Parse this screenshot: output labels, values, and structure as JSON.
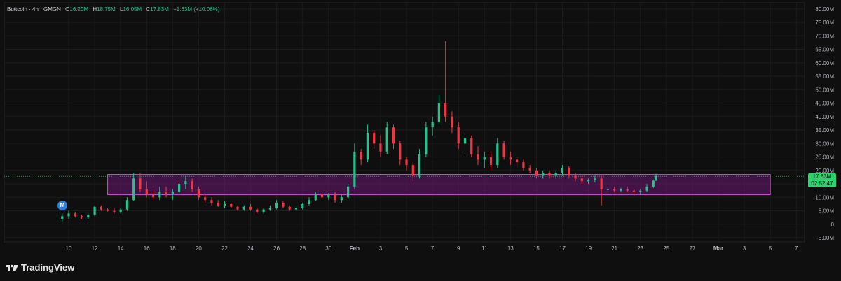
{
  "legend": {
    "symbol": "Buttcoin · 4h · GMGN",
    "open_label": "O",
    "open": "16.20M",
    "high_label": "H",
    "high": "18.75M",
    "low_label": "L",
    "low": "16.05M",
    "close_label": "C",
    "close": "17.83M",
    "change": "+1.63M (+10.06%)"
  },
  "price_tag": {
    "price": "17.83M",
    "countdown": "02:52:47"
  },
  "marker": {
    "label": "M"
  },
  "brand": {
    "name": "TradingView"
  },
  "colors": {
    "background": "#0f0f0f",
    "up": "#22c58b",
    "down": "#f23645",
    "zone_fill": "#6b1a73",
    "zone_border": "#d24bd8",
    "price_tag": "#2bd36f",
    "grid": "#1c1c1c"
  },
  "chart_data": {
    "type": "candlestick",
    "title": "",
    "y_axis": {
      "ticks": [
        "80.00M",
        "75.00M",
        "70.00M",
        "65.00M",
        "60.00M",
        "55.00M",
        "50.00M",
        "45.00M",
        "40.00M",
        "35.00M",
        "30.00M",
        "25.00M",
        "20.00M",
        "15.00M",
        "10.00M",
        "5.00M",
        "0",
        "-5.00M"
      ],
      "ylim": [
        -5,
        80
      ],
      "unit": "M"
    },
    "x_axis": {
      "ticks": [
        "10",
        "12",
        "14",
        "16",
        "18",
        "20",
        "22",
        "24",
        "26",
        "28",
        "30",
        "Feb",
        "3",
        "5",
        "7",
        "9",
        "11",
        "13",
        "15",
        "17",
        "19",
        "21",
        "23",
        "25",
        "27",
        "Mar",
        "3",
        "5",
        "7"
      ],
      "bold_ticks": [
        "Feb",
        "Mar"
      ],
      "range": [
        "Jan 9",
        "Mar 7"
      ]
    },
    "series": [
      {
        "points": [
          [
            "Jan 9.5",
            2,
            4,
            1,
            3
          ],
          [
            "Jan 10",
            3,
            5,
            2,
            4
          ],
          [
            "Jan 10.5",
            4,
            4.5,
            2.5,
            3
          ],
          [
            "Jan 11",
            3,
            3.5,
            2,
            2.5
          ],
          [
            "Jan 11.5",
            2.5,
            4,
            2,
            3.5
          ],
          [
            "Jan 12",
            3.5,
            7,
            3,
            6.5
          ],
          [
            "Jan 12.5",
            6.5,
            7,
            5,
            5.5
          ],
          [
            "Jan 13",
            5.5,
            6,
            4.5,
            5
          ],
          [
            "Jan 13.5",
            5,
            6,
            4,
            4.5
          ],
          [
            "Jan 14",
            4.5,
            6,
            4,
            5.5
          ],
          [
            "Jan 14.5",
            5.5,
            10,
            5,
            9
          ],
          [
            "Jan 15",
            9,
            19,
            8.5,
            17
          ],
          [
            "Jan 15.5",
            17,
            19,
            12,
            13
          ],
          [
            "Jan 16",
            13,
            16,
            10,
            11
          ],
          [
            "Jan 16.5",
            11,
            13,
            9,
            10
          ],
          [
            "Jan 17",
            10,
            14,
            9,
            12
          ],
          [
            "Jan 17.5",
            12,
            14,
            10,
            11
          ],
          [
            "Jan 18",
            11,
            13,
            9,
            12
          ],
          [
            "Jan 18.5",
            12,
            16,
            11,
            15
          ],
          [
            "Jan 19",
            15,
            18,
            13,
            16
          ],
          [
            "Jan 19.5",
            16,
            17,
            12,
            13
          ],
          [
            "Jan 20",
            13,
            14,
            9,
            10
          ],
          [
            "Jan 20.5",
            10,
            11,
            8,
            9
          ],
          [
            "Jan 21",
            9,
            10,
            7,
            8
          ],
          [
            "Jan 21.5",
            8,
            9,
            6.5,
            7
          ],
          [
            "Jan 22",
            7,
            8.5,
            6,
            7.5
          ],
          [
            "Jan 22.5",
            7.5,
            8,
            6,
            6.5
          ],
          [
            "Jan 23",
            6.5,
            7,
            5,
            5.5
          ],
          [
            "Jan 23.5",
            5.5,
            7,
            5,
            6.5
          ],
          [
            "Jan 24",
            6.5,
            7.5,
            5,
            5.5
          ],
          [
            "Jan 24.5",
            5.5,
            6,
            4,
            4.5
          ],
          [
            "Jan 25",
            4.5,
            6,
            4,
            5.5
          ],
          [
            "Jan 25.5",
            5.5,
            7,
            5,
            6
          ],
          [
            "Jan 26",
            6,
            9,
            5.5,
            8
          ],
          [
            "Jan 26.5",
            8,
            8.5,
            6,
            6.5
          ],
          [
            "Jan 27",
            6.5,
            7,
            5,
            5.5
          ],
          [
            "Jan 27.5",
            5.5,
            6.5,
            5,
            6
          ],
          [
            "Jan 28",
            6,
            8,
            5.5,
            7.5
          ],
          [
            "Jan 28.5",
            7.5,
            10,
            7,
            9
          ],
          [
            "Jan 29",
            9,
            12,
            8.5,
            11
          ],
          [
            "Jan 29.5",
            11,
            12,
            9,
            10
          ],
          [
            "Jan 30",
            10,
            11.5,
            9,
            11
          ],
          [
            "Jan 30.5",
            11,
            12,
            8,
            9
          ],
          [
            "Jan 31",
            9,
            11,
            8,
            10
          ],
          [
            "Jan 31.5",
            10,
            15,
            9.5,
            14
          ],
          [
            "Feb 1",
            14,
            30,
            13,
            27
          ],
          [
            "Feb 1.5",
            27,
            28,
            22,
            24
          ],
          [
            "Feb 2",
            24,
            37,
            23,
            34
          ],
          [
            "Feb 2.5",
            34,
            35,
            28,
            30
          ],
          [
            "Feb 3",
            30,
            33,
            25,
            27
          ],
          [
            "Feb 3.5",
            27,
            38,
            26,
            36
          ],
          [
            "Feb 4",
            36,
            37,
            28,
            30
          ],
          [
            "Feb 4.5",
            30,
            31,
            22,
            24
          ],
          [
            "Feb 5",
            24,
            25,
            20,
            22
          ],
          [
            "Feb 5.5",
            22,
            23,
            16,
            18
          ],
          [
            "Feb 6",
            18,
            28,
            17,
            26
          ],
          [
            "Feb 6.5",
            26,
            38,
            25,
            36
          ],
          [
            "Feb 7",
            36,
            40,
            33,
            38
          ],
          [
            "Feb 7.5",
            38,
            48,
            37,
            45
          ],
          [
            "Feb 8",
            45,
            68,
            38,
            40
          ],
          [
            "Feb 8.5",
            40,
            42,
            34,
            36
          ],
          [
            "Feb 9",
            36,
            38,
            28,
            30
          ],
          [
            "Feb 9.5",
            30,
            34,
            26,
            32
          ],
          [
            "Feb 10",
            32,
            33,
            25,
            26
          ],
          [
            "Feb 10.5",
            26,
            29,
            22,
            24
          ],
          [
            "Feb 11",
            24,
            27,
            21,
            25
          ],
          [
            "Feb 11.5",
            25,
            27,
            20,
            22
          ],
          [
            "Feb 12",
            22,
            32,
            21,
            30
          ],
          [
            "Feb 12.5",
            30,
            31,
            24,
            25
          ],
          [
            "Feb 13",
            25,
            27,
            22,
            24
          ],
          [
            "Feb 13.5",
            24,
            25,
            21,
            23
          ],
          [
            "Feb 14",
            23,
            24,
            20,
            21
          ],
          [
            "Feb 14.5",
            21,
            22,
            19,
            20
          ],
          [
            "Feb 15",
            20,
            21,
            17,
            18
          ],
          [
            "Feb 15.5",
            18,
            20,
            17,
            19
          ],
          [
            "Feb 16",
            19,
            20,
            17,
            18
          ],
          [
            "Feb 16.5",
            18,
            20,
            17,
            19
          ],
          [
            "Feb 17",
            19,
            22,
            18,
            21
          ],
          [
            "Feb 17.5",
            21,
            21.5,
            17,
            18
          ],
          [
            "Feb 18",
            18,
            19,
            16,
            17
          ],
          [
            "Feb 18.5",
            17,
            18,
            15,
            16
          ],
          [
            "Feb 19",
            16,
            17,
            15,
            16.5
          ],
          [
            "Feb 19.5",
            16.5,
            18,
            15.5,
            17
          ],
          [
            "Feb 20",
            17,
            18,
            7,
            13
          ],
          [
            "Feb 20.5",
            13,
            14,
            12,
            13
          ],
          [
            "Feb 21",
            13,
            14,
            12,
            12.5
          ],
          [
            "Feb 21.5",
            12.5,
            13.5,
            12,
            13
          ],
          [
            "Feb 22",
            13,
            14,
            12,
            12.5
          ],
          [
            "Feb 22.5",
            12.5,
            13,
            11,
            12
          ],
          [
            "Feb 23",
            12,
            13,
            11,
            12.5
          ],
          [
            "Feb 23.5",
            12.5,
            15,
            12,
            14
          ],
          [
            "Feb 24",
            14,
            16.5,
            13.5,
            16.2
          ],
          [
            "Feb 24.2",
            16.2,
            18.75,
            16.05,
            17.83
          ]
        ],
        "point_format": [
          "date",
          "open",
          "high",
          "low",
          "close"
        ]
      }
    ],
    "zone": {
      "from": "Jan 13",
      "to": "Mar 5",
      "low": 11,
      "high": 18.5
    },
    "last_price": 17.83,
    "grid": true,
    "legend": "top-left"
  }
}
